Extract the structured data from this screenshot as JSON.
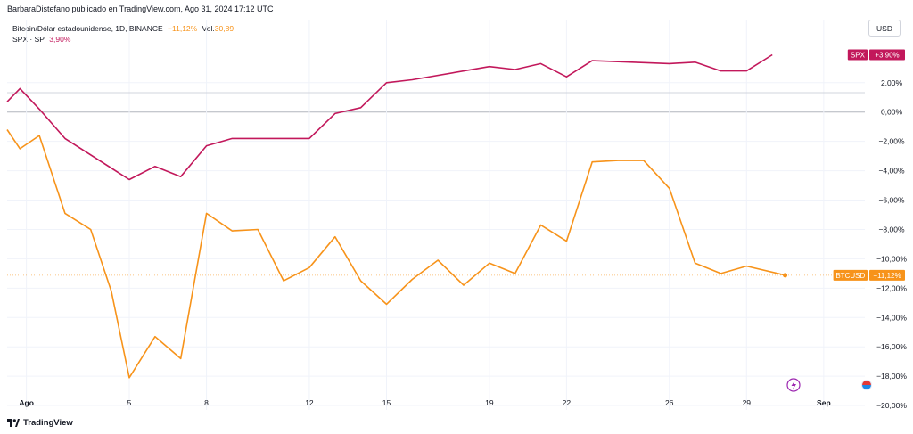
{
  "header": {
    "publisher_line": "BarbaraDistefano publicado en TradingView.com, Ago 31, 2024 17:12 UTC"
  },
  "legend": {
    "btc_label": "Bitcoin/Dólar estadounidense, 1D, BINANCE",
    "btc_change": "−11,12%",
    "vol_label": "Vol.",
    "vol_value": "30,89",
    "spx_label": "SPX · SP",
    "spx_change": "3,90%"
  },
  "currency_button": "USD",
  "footer": {
    "brand": "TradingView"
  },
  "colors": {
    "btc": "#f7931a",
    "spx": "#c2185b",
    "grid": "#f0f3fa"
  },
  "chart_data": {
    "type": "line",
    "x_ticks": [
      {
        "label": "Ago",
        "day": 1
      },
      {
        "label": "5",
        "day": 5
      },
      {
        "label": "8",
        "day": 8
      },
      {
        "label": "12",
        "day": 12
      },
      {
        "label": "15",
        "day": 15
      },
      {
        "label": "19",
        "day": 19
      },
      {
        "label": "22",
        "day": 22
      },
      {
        "label": "26",
        "day": 26
      },
      {
        "label": "29",
        "day": 29
      },
      {
        "label": "Sep",
        "day": 32
      }
    ],
    "y_ticks": [
      {
        "label": "2,00%",
        "value": 2
      },
      {
        "label": "0,00%",
        "value": 0
      },
      {
        "label": "−2,00%",
        "value": -2
      },
      {
        "label": "−4,00%",
        "value": -4
      },
      {
        "label": "−6,00%",
        "value": -6
      },
      {
        "label": "−8,00%",
        "value": -8
      },
      {
        "label": "−10,00%",
        "value": -10
      },
      {
        "label": "−12,00%",
        "value": -12
      },
      {
        "label": "−14,00%",
        "value": -14
      },
      {
        "label": "−16,00%",
        "value": -16
      },
      {
        "label": "−18,00%",
        "value": -18
      },
      {
        "label": "−20,00%",
        "value": -20
      }
    ],
    "ylim": [
      -20.3,
      6.3
    ],
    "xlim": [
      0.25,
      33.6
    ],
    "series": [
      {
        "name": "SPX",
        "badge": "+3,90%",
        "color": "#c2185b",
        "points": [
          [
            0.25,
            0.7
          ],
          [
            0.75,
            1.6
          ],
          [
            1.5,
            0.2
          ],
          [
            2.5,
            -1.8
          ],
          [
            5,
            -4.6
          ],
          [
            6,
            -3.7
          ],
          [
            7,
            -4.4
          ],
          [
            8,
            -2.3
          ],
          [
            9,
            -1.8
          ],
          [
            10,
            -1.8
          ],
          [
            11,
            -1.8
          ],
          [
            12,
            -1.8
          ],
          [
            13,
            -0.1
          ],
          [
            14,
            0.3
          ],
          [
            15,
            2.0
          ],
          [
            16,
            2.2
          ],
          [
            19,
            3.1
          ],
          [
            20,
            2.9
          ],
          [
            21,
            3.3
          ],
          [
            22,
            2.4
          ],
          [
            23,
            3.5
          ],
          [
            26,
            3.3
          ],
          [
            27,
            3.4
          ],
          [
            28,
            2.8
          ],
          [
            29,
            2.8
          ],
          [
            30,
            3.9
          ]
        ]
      },
      {
        "name": "BTCUSD",
        "badge": "−11,12%",
        "color": "#f7931a",
        "points": [
          [
            0.25,
            -1.2
          ],
          [
            0.75,
            -2.5
          ],
          [
            1.5,
            -1.6
          ],
          [
            2.5,
            -6.9
          ],
          [
            3.5,
            -8.0
          ],
          [
            4.3,
            -12.2
          ],
          [
            5,
            -18.1
          ],
          [
            6,
            -15.3
          ],
          [
            7,
            -16.8
          ],
          [
            8,
            -6.9
          ],
          [
            9,
            -8.1
          ],
          [
            10,
            -8.0
          ],
          [
            11,
            -11.5
          ],
          [
            12,
            -10.6
          ],
          [
            13,
            -8.5
          ],
          [
            14,
            -11.5
          ],
          [
            15,
            -13.1
          ],
          [
            16,
            -11.4
          ],
          [
            17,
            -10.1
          ],
          [
            18,
            -11.8
          ],
          [
            19,
            -10.3
          ],
          [
            20,
            -11.0
          ],
          [
            21,
            -7.7
          ],
          [
            22,
            -8.8
          ],
          [
            23,
            -3.4
          ],
          [
            24,
            -3.3
          ],
          [
            25,
            -3.3
          ],
          [
            26,
            -5.2
          ],
          [
            27,
            -10.3
          ],
          [
            28,
            -11.0
          ],
          [
            29,
            -10.5
          ],
          [
            30.5,
            -11.12
          ]
        ]
      }
    ]
  }
}
